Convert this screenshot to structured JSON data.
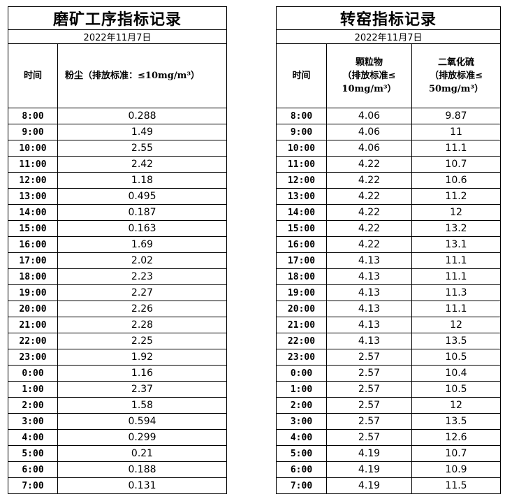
{
  "left": {
    "title": "磨矿工序指标记录",
    "date": "2022年11月7日",
    "headers": {
      "time": "时间",
      "dust": "粉尘（排放标准：≤10mg/m³）"
    },
    "rows": [
      {
        "time": "8:00",
        "dust": "0.288"
      },
      {
        "time": "9:00",
        "dust": "1.49"
      },
      {
        "time": "10:00",
        "dust": "2.55"
      },
      {
        "time": "11:00",
        "dust": "2.42"
      },
      {
        "time": "12:00",
        "dust": "1.18"
      },
      {
        "time": "13:00",
        "dust": "0.495"
      },
      {
        "time": "14:00",
        "dust": "0.187"
      },
      {
        "time": "15:00",
        "dust": "0.163"
      },
      {
        "time": "16:00",
        "dust": "1.69"
      },
      {
        "time": "17:00",
        "dust": "2.02"
      },
      {
        "time": "18:00",
        "dust": "2.23"
      },
      {
        "time": "19:00",
        "dust": "2.27"
      },
      {
        "time": "20:00",
        "dust": "2.26"
      },
      {
        "time": "21:00",
        "dust": "2.28"
      },
      {
        "time": "22:00",
        "dust": "2.25"
      },
      {
        "time": "23:00",
        "dust": "1.92"
      },
      {
        "time": "0:00",
        "dust": "1.16"
      },
      {
        "time": "1:00",
        "dust": "2.37"
      },
      {
        "time": "2:00",
        "dust": "1.58"
      },
      {
        "time": "3:00",
        "dust": "0.594"
      },
      {
        "time": "4:00",
        "dust": "0.299"
      },
      {
        "time": "5:00",
        "dust": "0.21"
      },
      {
        "time": "6:00",
        "dust": "0.188"
      },
      {
        "time": "7:00",
        "dust": "0.131"
      }
    ]
  },
  "right": {
    "title": "转窑指标记录",
    "date": "2022年11月7日",
    "headers": {
      "time": "时间",
      "pm_line1": "颗粒物",
      "pm_line2": "（排放标准≤",
      "pm_line3": "10mg/m³）",
      "so2_line1": "二氧化硫",
      "so2_line2": "（排放标准≤",
      "so2_line3": "50mg/m³）"
    },
    "rows": [
      {
        "time": "8:00",
        "pm": "4.06",
        "so2": "9.87"
      },
      {
        "time": "9:00",
        "pm": "4.06",
        "so2": "11"
      },
      {
        "time": "10:00",
        "pm": "4.06",
        "so2": "11.1"
      },
      {
        "time": "11:00",
        "pm": "4.22",
        "so2": "10.7"
      },
      {
        "time": "12:00",
        "pm": "4.22",
        "so2": "10.6"
      },
      {
        "time": "13:00",
        "pm": "4.22",
        "so2": "11.2"
      },
      {
        "time": "14:00",
        "pm": "4.22",
        "so2": "12"
      },
      {
        "time": "15:00",
        "pm": "4.22",
        "so2": "13.2"
      },
      {
        "time": "16:00",
        "pm": "4.22",
        "so2": "13.1"
      },
      {
        "time": "17:00",
        "pm": "4.13",
        "so2": "11.1"
      },
      {
        "time": "18:00",
        "pm": "4.13",
        "so2": "11.1"
      },
      {
        "time": "19:00",
        "pm": "4.13",
        "so2": "11.3"
      },
      {
        "time": "20:00",
        "pm": "4.13",
        "so2": "11.1"
      },
      {
        "time": "21:00",
        "pm": "4.13",
        "so2": "12"
      },
      {
        "time": "22:00",
        "pm": "4.13",
        "so2": "13.5"
      },
      {
        "time": "23:00",
        "pm": "2.57",
        "so2": "10.5"
      },
      {
        "time": "0:00",
        "pm": "2.57",
        "so2": "10.4"
      },
      {
        "time": "1:00",
        "pm": "2.57",
        "so2": "10.5"
      },
      {
        "time": "2:00",
        "pm": "2.57",
        "so2": "12"
      },
      {
        "time": "3:00",
        "pm": "2.57",
        "so2": "13.5"
      },
      {
        "time": "4:00",
        "pm": "2.57",
        "so2": "12.6"
      },
      {
        "time": "5:00",
        "pm": "4.19",
        "so2": "10.7"
      },
      {
        "time": "6:00",
        "pm": "4.19",
        "so2": "10.9"
      },
      {
        "time": "7:00",
        "pm": "4.19",
        "so2": "11.5"
      }
    ]
  }
}
